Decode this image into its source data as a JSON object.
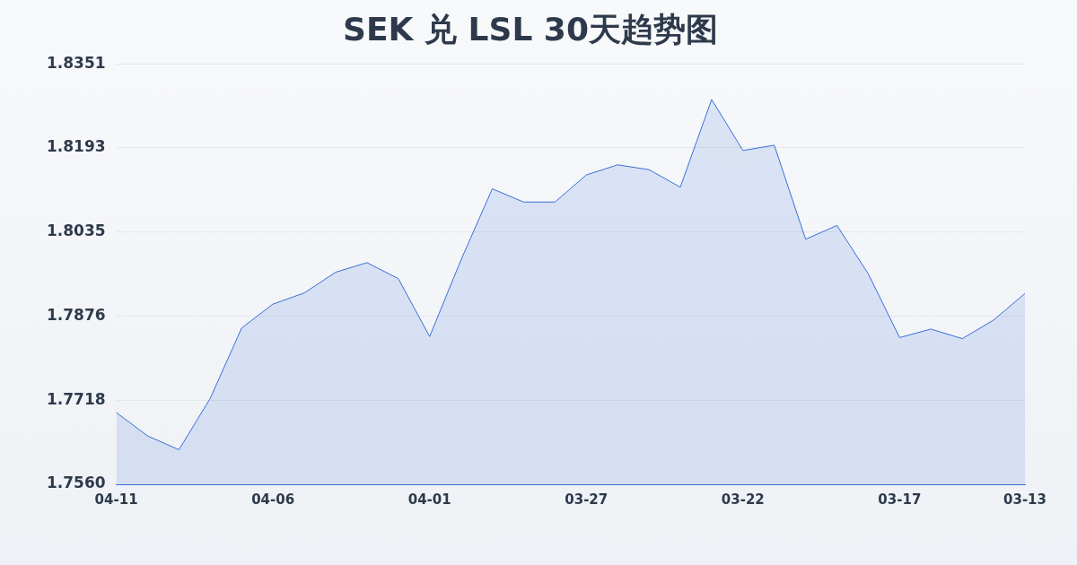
{
  "chart_data": {
    "type": "area",
    "title": "SEK 兑 LSL 30天趋势图",
    "categories": [
      "04-11",
      null,
      null,
      null,
      null,
      "04-06",
      null,
      null,
      null,
      null,
      "04-01",
      null,
      null,
      null,
      null,
      "03-27",
      null,
      null,
      null,
      null,
      "03-22",
      null,
      null,
      null,
      null,
      "03-17",
      null,
      null,
      null,
      "03-13"
    ],
    "series": [
      {
        "color": "#3a6fd8",
        "values": [
          1.7695,
          1.7651,
          1.7625,
          1.7722,
          1.7854,
          1.7899,
          1.792,
          1.7959,
          1.7977,
          1.7947,
          1.7838,
          1.7982,
          1.8116,
          1.8091,
          1.8091,
          1.8142,
          1.8161,
          1.8152,
          1.8119,
          1.8284,
          1.8188,
          1.8198,
          1.8021,
          1.8047,
          1.7956,
          1.7836,
          1.7852,
          1.7834,
          1.7869,
          1.7919
        ]
      }
    ],
    "ylim": [
      1.756,
      1.8351
    ],
    "yticks": [
      {
        "value": 1.756,
        "label": "1.7560"
      },
      1.7718,
      1.7876,
      1.8035,
      1.8193,
      1.8351
    ],
    "grid": "y",
    "legend": false,
    "marker": "none",
    "line_style": "solid"
  }
}
